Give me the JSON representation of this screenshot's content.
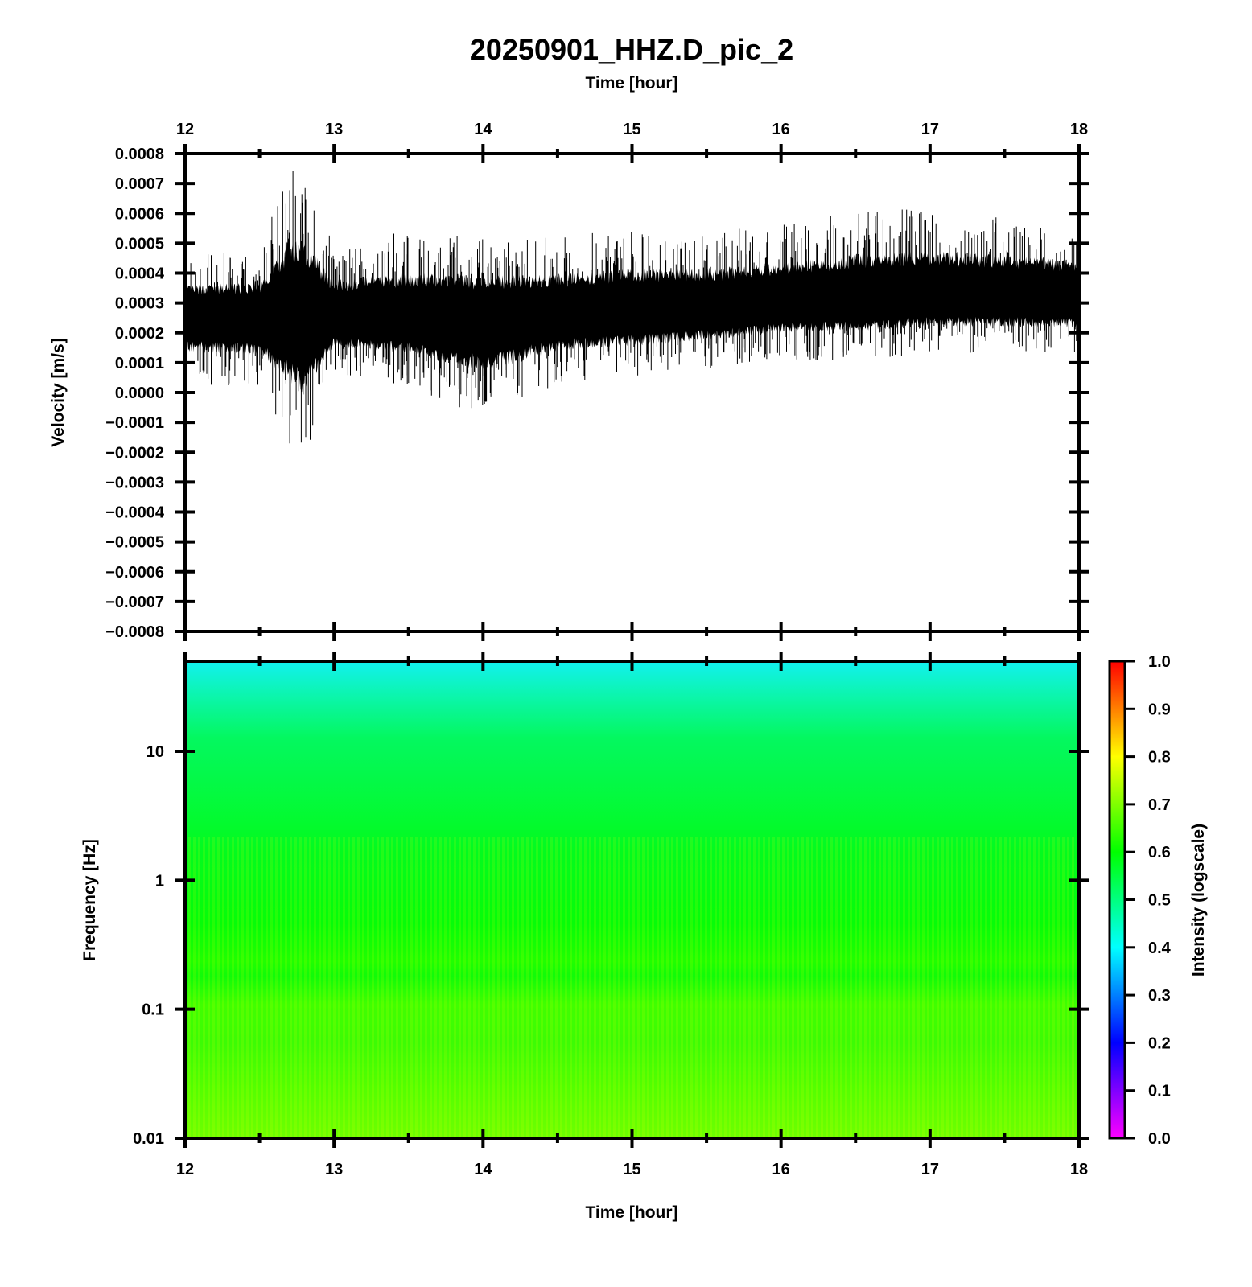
{
  "chart_data": [
    {
      "type": "line",
      "title": "20250901_HHZ.D_pic_2",
      "xlabel_top": "Time [hour]",
      "ylabel": "Velocity [m/s]",
      "xlim": [
        12,
        18
      ],
      "ylim": [
        -0.0008,
        0.0008
      ],
      "x_ticks": [
        "12",
        "13",
        "14",
        "15",
        "16",
        "17",
        "18"
      ],
      "y_ticks": [
        "0.0008",
        "0.0007",
        "0.0006",
        "0.0005",
        "0.0004",
        "0.0003",
        "0.0002",
        "0.0001",
        "0.0000",
        "−0.0001",
        "−0.0002",
        "−0.0003",
        "−0.0004",
        "−0.0005",
        "−0.0006",
        "−0.0007",
        "−0.0008"
      ],
      "line_color": "#000000",
      "envelope": {
        "time": [
          12.0,
          12.5,
          12.7,
          12.8,
          13.0,
          13.5,
          14.0,
          14.5,
          15.0,
          15.5,
          16.0,
          16.5,
          17.0,
          17.5,
          18.0
        ],
        "baseline": [
          0.00025,
          0.00025,
          0.00026,
          0.00026,
          0.00025,
          0.00025,
          0.00025,
          0.00026,
          0.00027,
          0.00028,
          0.0003,
          0.00031,
          0.00032,
          0.00032,
          0.00032
        ],
        "upper": [
          0.00046,
          0.00048,
          0.00075,
          0.00074,
          0.0005,
          0.00054,
          0.00052,
          0.00052,
          0.00055,
          0.00054,
          0.00056,
          0.00061,
          0.00062,
          0.00059,
          0.00055
        ],
        "lower": [
          3e-05,
          1e-05,
          -0.00017,
          -0.00025,
          6e-05,
          2e-05,
          -0.0001,
          3e-05,
          5e-05,
          8e-05,
          0.00011,
          0.00011,
          0.00013,
          0.00013,
          0.00012
        ]
      }
    },
    {
      "type": "heatmap",
      "xlabel": "Time [hour]",
      "ylabel": "Frequency [Hz]",
      "xlim": [
        12,
        18
      ],
      "ylim": [
        0.01,
        50
      ],
      "y_scale": "log",
      "x_ticks": [
        "12",
        "13",
        "14",
        "15",
        "16",
        "17",
        "18"
      ],
      "y_ticks": [
        {
          "value": 10,
          "label": "10"
        },
        {
          "value": 1,
          "label": "1"
        },
        {
          "value": 0.1,
          "label": "0.1"
        },
        {
          "value": 0.01,
          "label": "0.01"
        }
      ],
      "intensity_profile": [
        {
          "freq": 50,
          "intensity": 0.42
        },
        {
          "freq": 30,
          "intensity": 0.5
        },
        {
          "freq": 10,
          "intensity": 0.58
        },
        {
          "freq": 1,
          "intensity": 0.62
        },
        {
          "freq": 0.4,
          "intensity": 0.64
        },
        {
          "freq": 0.2,
          "intensity": 0.66
        },
        {
          "freq": 0.05,
          "intensity": 0.65
        },
        {
          "freq": 0.01,
          "intensity": 0.68
        }
      ],
      "colorbar": {
        "label": "Intensity (logscale)",
        "range": [
          0.0,
          1.0
        ],
        "ticks": [
          "1.0",
          "0.9",
          "0.8",
          "0.7",
          "0.6",
          "0.5",
          "0.4",
          "0.3",
          "0.2",
          "0.1",
          "0.0"
        ],
        "colors": [
          "#ff00ff",
          "#0000ff",
          "#00ffff",
          "#00ff00",
          "#ffff00",
          "#ff0000"
        ]
      }
    }
  ]
}
